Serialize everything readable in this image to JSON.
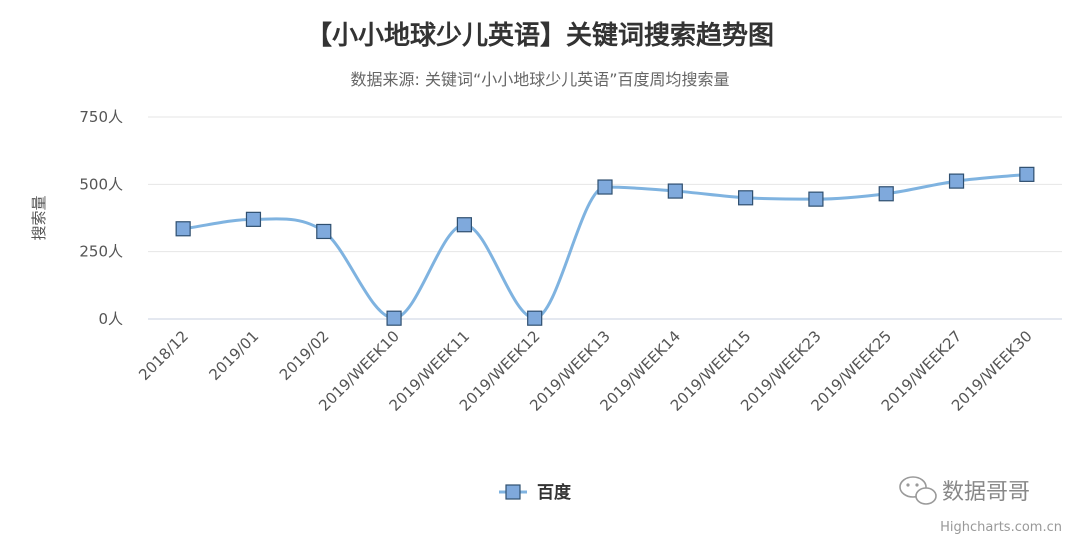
{
  "chart_data": {
    "type": "line",
    "title": "【小小地球少儿英语】关键词搜索趋势图",
    "subtitle": "数据来源: 关键词“小小地球少儿英语”百度周均搜索量",
    "ylabel": "搜索量",
    "xlabel": "",
    "ylim": [
      0,
      750
    ],
    "yticks": [
      0,
      250,
      500,
      750
    ],
    "ytick_suffix": "人",
    "grid": true,
    "legend_position": "bottom-center",
    "categories": [
      "2018/12",
      "2019/01",
      "2019/02",
      "2019/WEEK10",
      "2019/WEEK11",
      "2019/WEEK12",
      "2019/WEEK13",
      "2019/WEEK14",
      "2019/WEEK15",
      "2019/WEEK23",
      "2019/WEEK25",
      "2019/WEEK27",
      "2019/WEEK30"
    ],
    "series": [
      {
        "name": "百度",
        "color": "#7fb3e0",
        "marker_color": "#7fa9dc",
        "marker_border": "#2f4f6f",
        "values": [
          335,
          370,
          325,
          3,
          350,
          3,
          490,
          475,
          450,
          445,
          465,
          512,
          537
        ]
      }
    ]
  },
  "credit": "Highcharts.com.cn",
  "watermark": "数据哥哥",
  "watermark_icon": "wechat-icon"
}
